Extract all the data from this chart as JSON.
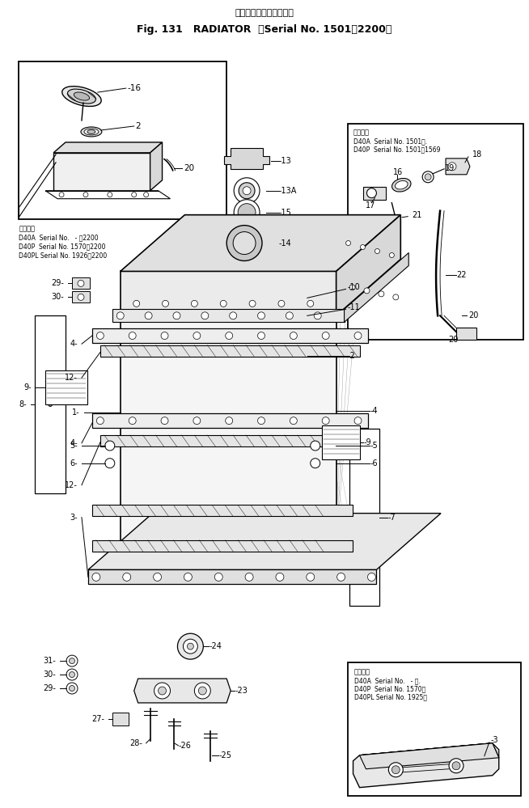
{
  "bg_color": "#ffffff",
  "line_color": "#000000",
  "fig_width": 6.54,
  "fig_height": 9.99,
  "dpi": 100,
  "title_jp": "ラジェータ",
  "title_serial_jp": "（適用号機",
  "title_main": "Fig. 131   RADIATOR",
  "title_serial": "Serial No. 1501～2200）",
  "inset1_app": "適用号機\nD40A  Serial No.   - ～2200\nD40P  Serial No. 1570～2200\nD40PL Serial No. 1926～2200",
  "inset2_app": "適用号機\nD40A  Serial No. 1501～.\nD40P  Serial No. 1501～1569",
  "inset3_app1": "適用号機",
  "inset3_app2": "D40A  Serial No.    - ～.",
  "inset3_app3": "D40P  Serial No. 1570～",
  "inset3_app4": "D40PL Serial No. 1925～"
}
